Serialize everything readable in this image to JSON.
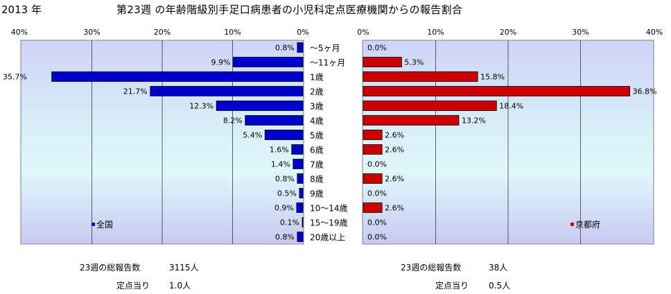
{
  "header": {
    "year": "2013 年",
    "title": "第23週 の年齢階級別手足口病患者の小児科定点医療機関からの報告割合"
  },
  "chart_data": [
    {
      "type": "bar",
      "orientation": "horizontal",
      "direction": "reversed",
      "series": [
        {
          "name": "全国",
          "values": [
            0.8,
            9.9,
            35.7,
            21.7,
            12.3,
            8.2,
            5.4,
            1.6,
            1.4,
            0.8,
            0.5,
            0.9,
            0.1,
            0.8
          ],
          "color": "#0000cc"
        }
      ],
      "categories": [
        "～5ヶ月",
        "～11ヶ月",
        "1歳",
        "2歳",
        "3歳",
        "4歳",
        "5歳",
        "6歳",
        "7歳",
        "8歳",
        "9歳",
        "10～14歳",
        "15～19歳",
        "20歳以上"
      ],
      "xlim": [
        0,
        40
      ],
      "ticks": [
        "40%",
        "30%",
        "20%",
        "10%",
        "0%"
      ],
      "data_labels": [
        "0.8%",
        "9.9%",
        "35.7%",
        "21.7%",
        "12.3%",
        "8.2%",
        "5.4%",
        "1.6%",
        "1.4%",
        "0.8%",
        "0.5%",
        "0.9%",
        "0.1%",
        "0.8%"
      ],
      "legend": "bottom-left",
      "grid": true
    },
    {
      "type": "bar",
      "orientation": "horizontal",
      "series": [
        {
          "name": "京都府",
          "values": [
            0.0,
            5.3,
            15.8,
            36.8,
            18.4,
            13.2,
            2.6,
            2.6,
            0.0,
            2.6,
            0.0,
            2.6,
            0.0,
            0.0
          ],
          "color": "#cc0000"
        }
      ],
      "categories": [
        "～5ヶ月",
        "～11ヶ月",
        "1歳",
        "2歳",
        "3歳",
        "4歳",
        "5歳",
        "6歳",
        "7歳",
        "8歳",
        "9歳",
        "10～14歳",
        "15～19歳",
        "20歳以上"
      ],
      "xlim": [
        0,
        40
      ],
      "ticks": [
        "0%",
        "10%",
        "20%",
        "30%",
        "40%"
      ],
      "data_labels": [
        "0.0%",
        "5.3%",
        "15.8%",
        "36.8%",
        "18.4%",
        "13.2%",
        "2.6%",
        "2.6%",
        "0.0%",
        "2.6%",
        "0.0%",
        "2.6%",
        "0.0%",
        "0.0%"
      ],
      "legend": "bottom-right",
      "grid": true
    }
  ],
  "footer": {
    "left": {
      "reports_label": "23週の総報告数",
      "reports_value": "3115人",
      "per_label": "定点当り",
      "per_value": "1.0人"
    },
    "right": {
      "reports_label": "23週の総報告数",
      "reports_value": "38人",
      "per_label": "定点当り",
      "per_value": "0.5人"
    }
  }
}
